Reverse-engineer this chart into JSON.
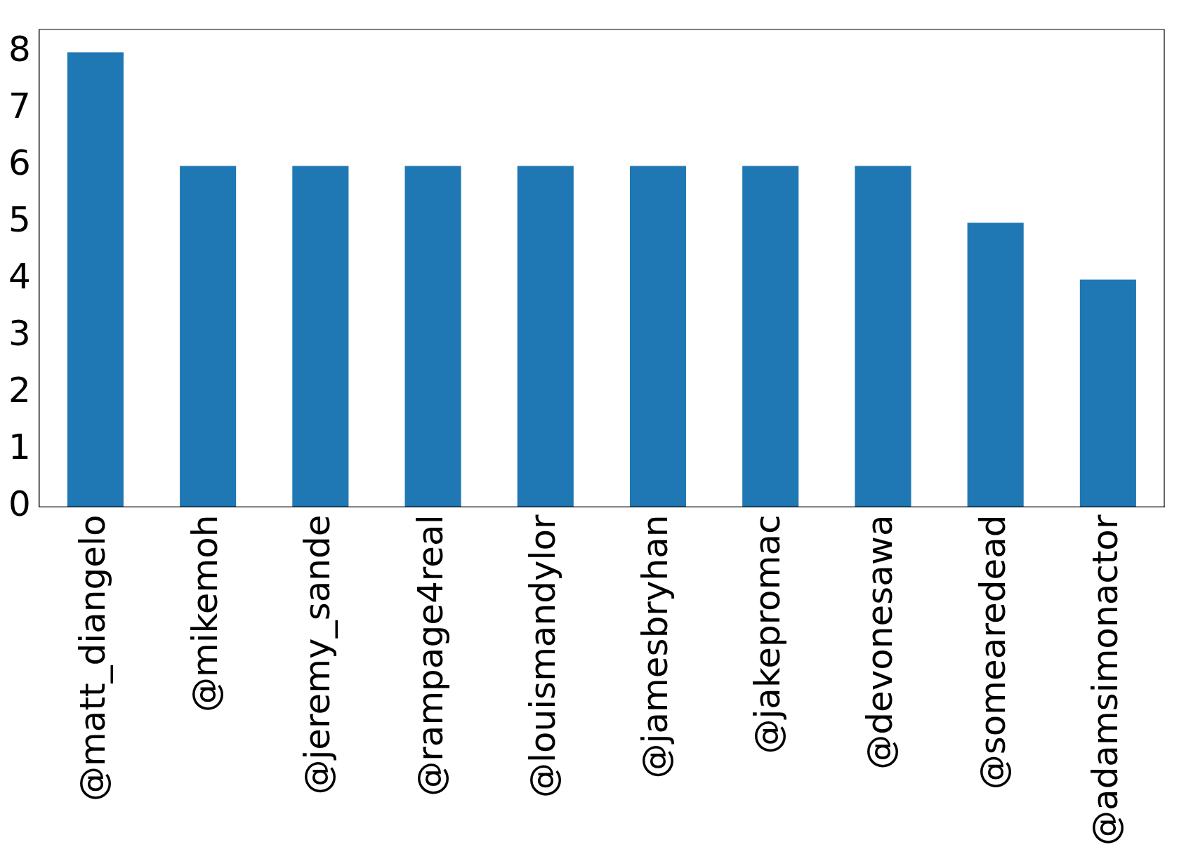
{
  "chart_data": {
    "type": "bar",
    "categories": [
      "@matt_diangelo",
      "@mikemoh",
      "@jeremy_sande",
      "@rampage4real",
      "@louismandylor",
      "@jamesbryhan",
      "@jakepromac",
      "@devonesawa",
      "@somearedead",
      "@adamsimonactor"
    ],
    "values": [
      8,
      6,
      6,
      6,
      6,
      6,
      6,
      6,
      5,
      4
    ],
    "color": "#1f77b4",
    "ylim": [
      0,
      8.4
    ],
    "yticks": [
      0,
      1,
      2,
      3,
      4,
      5,
      6,
      7,
      8
    ],
    "grid": false,
    "legend": false
  }
}
